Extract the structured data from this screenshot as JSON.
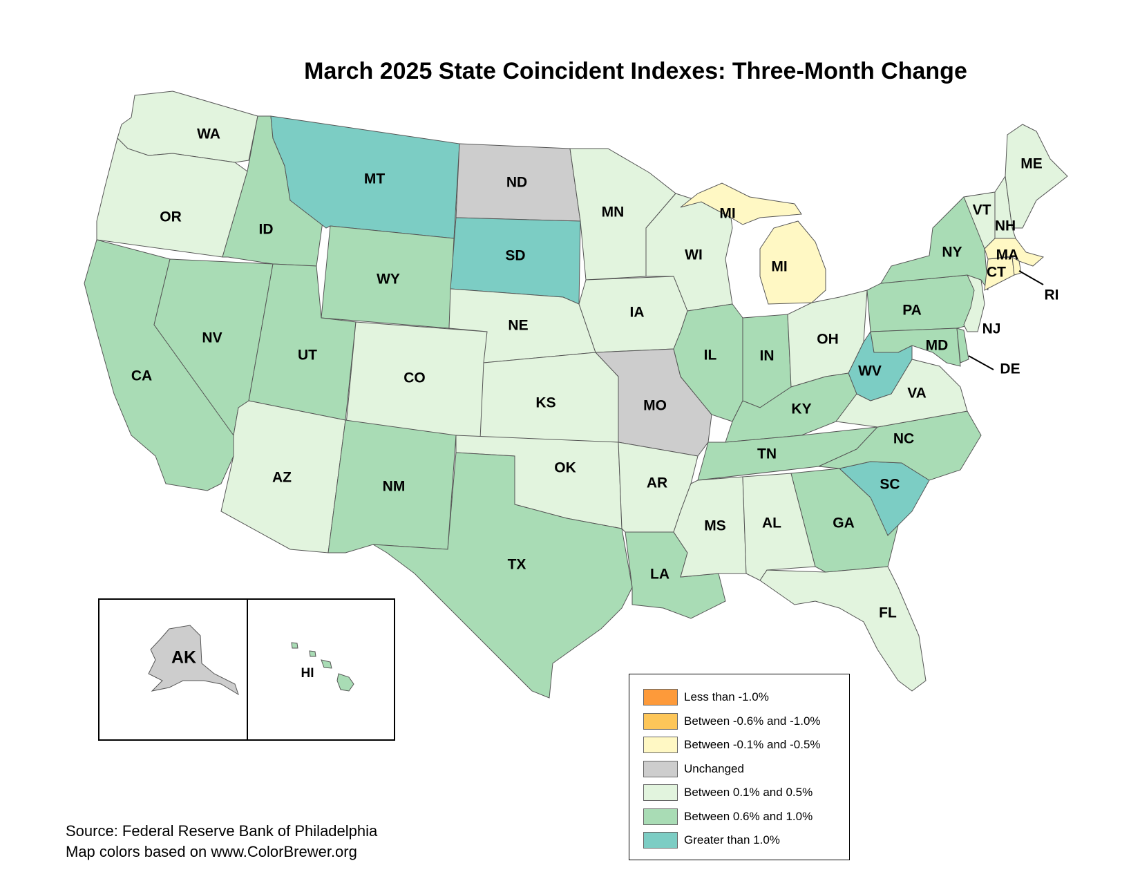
{
  "title": "March 2025 State Coincident Indexes: Three-Month Change",
  "colors": {
    "lt_neg_1": "#fd9a3a",
    "neg_06_10": "#fdc659",
    "neg_01_05": "#fff8c4",
    "unchanged": "#cdcdcd",
    "pos_01_05": "#e2f4de",
    "pos_06_10": "#a9dcb5",
    "gt_1": "#7ccdc4"
  },
  "legend": {
    "items": [
      {
        "label": "Less than -1.0%",
        "color": "#fd9a3a"
      },
      {
        "label": "Between -0.6% and -1.0%",
        "color": "#fdc659"
      },
      {
        "label": "Between -0.1% and -0.5%",
        "color": "#fff8c4"
      },
      {
        "label": "Unchanged",
        "color": "#cdcdcd"
      },
      {
        "label": "Between 0.1% and 0.5%",
        "color": "#e2f4de"
      },
      {
        "label": "Between 0.6% and 1.0%",
        "color": "#a9dcb5"
      },
      {
        "label": "Greater than 1.0%",
        "color": "#7ccdc4"
      }
    ]
  },
  "states": {
    "WA": "Between 0.1% and 0.5%",
    "OR": "Between 0.1% and 0.5%",
    "CA": "Between 0.6% and 1.0%",
    "ID": "Between 0.6% and 1.0%",
    "NV": "Between 0.6% and 1.0%",
    "MT": "Greater than 1.0%",
    "WY": "Between 0.6% and 1.0%",
    "UT": "Between 0.6% and 1.0%",
    "AZ": "Between 0.1% and 0.5%",
    "CO": "Between 0.1% and 0.5%",
    "NM": "Between 0.6% and 1.0%",
    "ND": "Unchanged",
    "SD": "Greater than 1.0%",
    "NE": "Between 0.1% and 0.5%",
    "KS": "Between 0.1% and 0.5%",
    "OK": "Between 0.1% and 0.5%",
    "TX": "Between 0.6% and 1.0%",
    "MN": "Between 0.1% and 0.5%",
    "IA": "Between 0.1% and 0.5%",
    "MO": "Unchanged",
    "AR": "Between 0.1% and 0.5%",
    "LA": "Between 0.6% and 1.0%",
    "WI": "Between 0.1% and 0.5%",
    "IL": "Between 0.6% and 1.0%",
    "MI": "Between -0.1% and -0.5%",
    "IN": "Between 0.6% and 1.0%",
    "OH": "Between 0.1% and 0.5%",
    "KY": "Between 0.6% and 1.0%",
    "TN": "Between 0.6% and 1.0%",
    "MS": "Between 0.1% and 0.5%",
    "AL": "Between 0.1% and 0.5%",
    "GA": "Between 0.6% and 1.0%",
    "FL": "Between 0.1% and 0.5%",
    "SC": "Greater than 1.0%",
    "NC": "Between 0.6% and 1.0%",
    "VA": "Between 0.1% and 0.5%",
    "WV": "Greater than 1.0%",
    "PA": "Between 0.6% and 1.0%",
    "NY": "Between 0.6% and 1.0%",
    "NJ": "Between 0.1% and 0.5%",
    "DE": "Between 0.6% and 1.0%",
    "MD": "Between 0.6% and 1.0%",
    "CT": "Between -0.1% and -0.5%",
    "RI": "Between -0.1% and -0.5%",
    "MA": "Between -0.1% and -0.5%",
    "VT": "Between 0.1% and 0.5%",
    "NH": "Between 0.1% and 0.5%",
    "ME": "Between 0.1% and 0.5%",
    "AK": "Unchanged",
    "HI": "Between 0.6% and 1.0%"
  },
  "labels": {
    "WA": "WA",
    "OR": "OR",
    "CA": "CA",
    "ID": "ID",
    "NV": "NV",
    "MT": "MT",
    "WY": "WY",
    "UT": "UT",
    "AZ": "AZ",
    "CO": "CO",
    "NM": "NM",
    "ND": "ND",
    "SD": "SD",
    "NE": "NE",
    "KS": "KS",
    "OK": "OK",
    "TX": "TX",
    "MN": "MN",
    "IA": "IA",
    "MO": "MO",
    "AR": "AR",
    "LA": "LA",
    "WI": "WI",
    "IL": "IL",
    "MI_UP": "MI",
    "MI_LP": "MI",
    "IN": "IN",
    "OH": "OH",
    "KY": "KY",
    "TN": "TN",
    "MS": "MS",
    "AL": "AL",
    "GA": "GA",
    "FL": "FL",
    "SC": "SC",
    "NC": "NC",
    "VA": "VA",
    "WV": "WV",
    "PA": "PA",
    "NY": "NY",
    "NJ": "NJ",
    "DE": "DE",
    "MD": "MD",
    "CT": "CT",
    "RI": "RI",
    "MA": "MA",
    "VT": "VT",
    "NH": "NH",
    "ME": "ME",
    "AK": "AK",
    "HI": "HI"
  },
  "source": {
    "line1": "Source: Federal Reserve Bank of Philadelphia",
    "line2": "Map colors based on www.ColorBrewer.org"
  }
}
